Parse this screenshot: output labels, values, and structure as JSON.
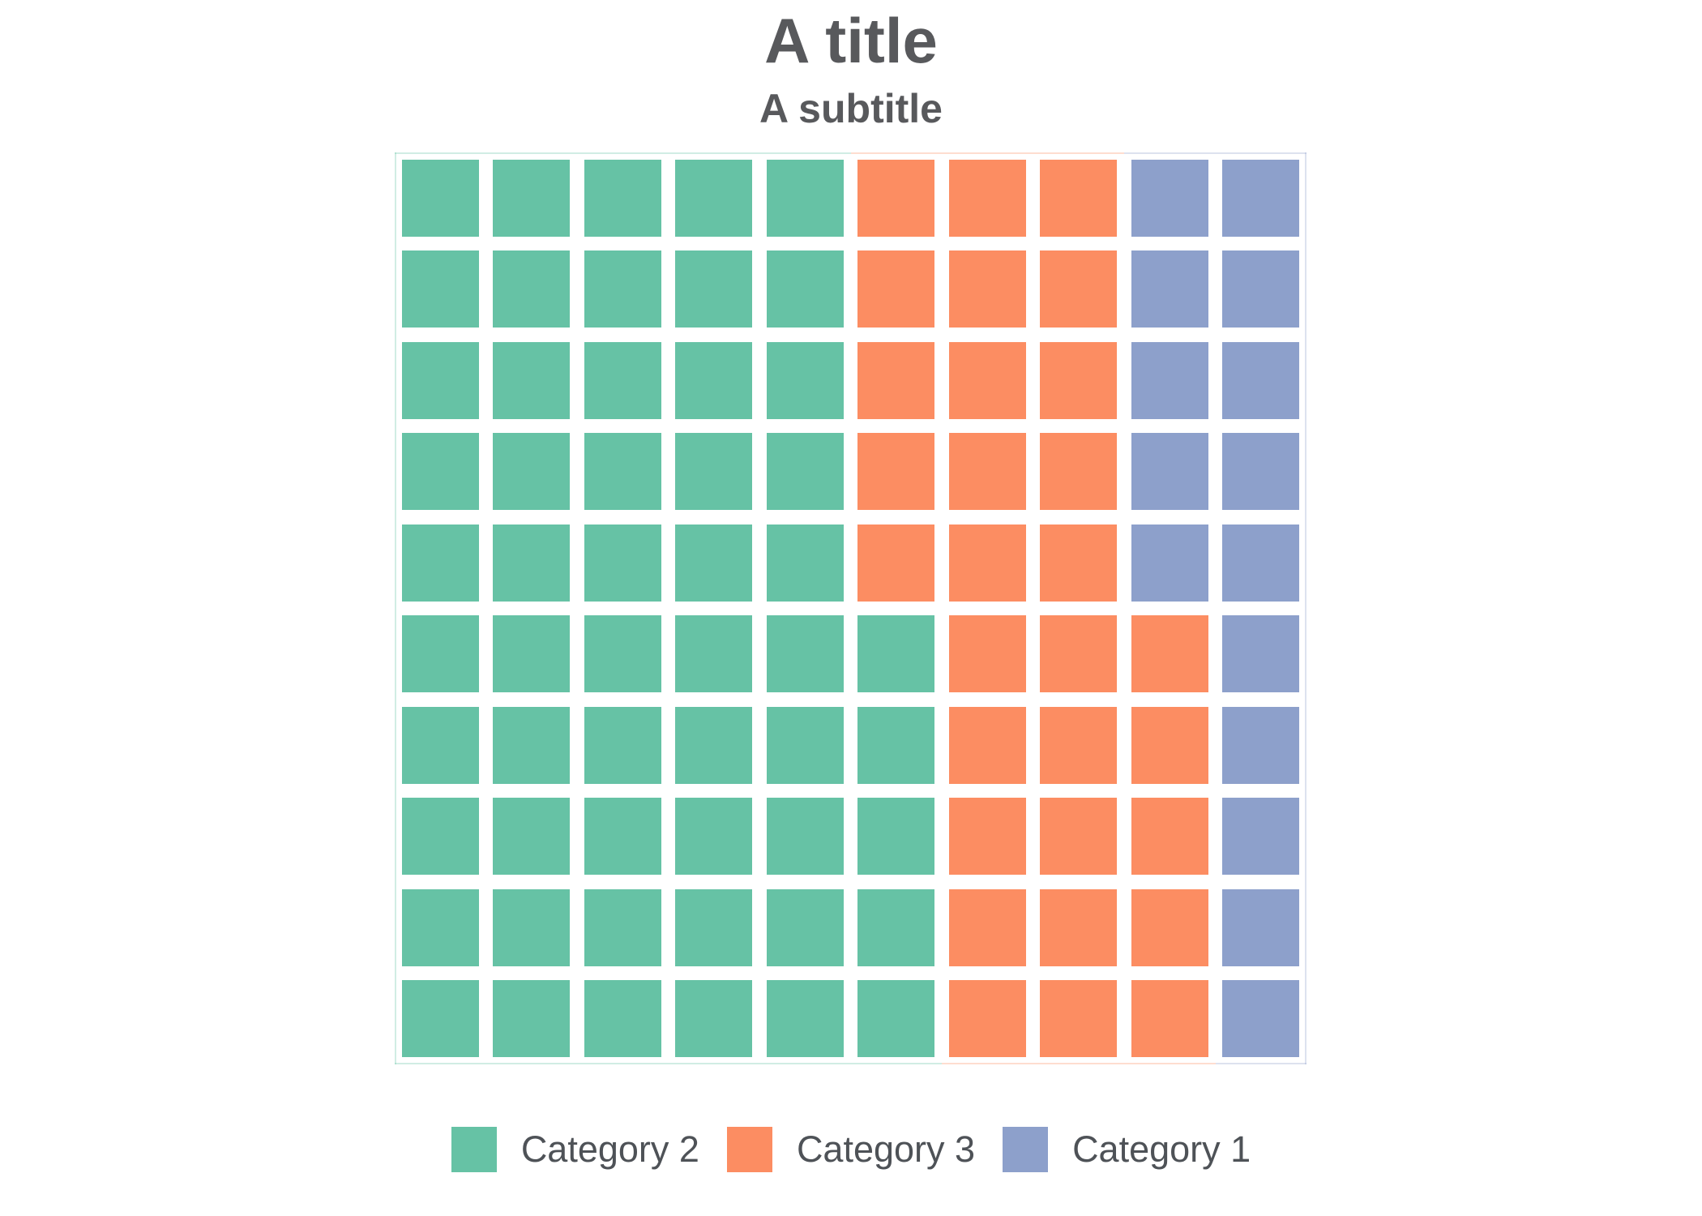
{
  "page": {
    "background": "#ffffff"
  },
  "chart_data": {
    "type": "waffle",
    "title": "A title",
    "subtitle": "A subtitle",
    "unit_total": 100,
    "units_per_square": 1,
    "series": [
      {
        "name": "Category 2",
        "value": 55,
        "color": "#66C2A5"
      },
      {
        "name": "Category 3",
        "value": 30,
        "color": "#FC8D62"
      },
      {
        "name": "Category 1",
        "value": 15,
        "color": "#8DA0CB"
      }
    ],
    "grid": {
      "rows": 10,
      "cols": 10,
      "cell_key": "digit = index into series array (0=Category 2 green, 1=Category 3 orange, 2=Category 1 blue); strings are rows top-to-bottom, chars are columns left-to-right",
      "cells": [
        "0000011122",
        "0000011122",
        "0000011122",
        "0000011122",
        "0000011122",
        "0000001112",
        "0000001112",
        "0000001112",
        "0000001112",
        "0000001112"
      ]
    },
    "fill_order": "columns left-to-right, filled bottom-to-top",
    "legend_position": "bottom",
    "title_color": "#58595C",
    "legend_text_color": "#4E5257",
    "panel_border_opacity": 0.3
  }
}
